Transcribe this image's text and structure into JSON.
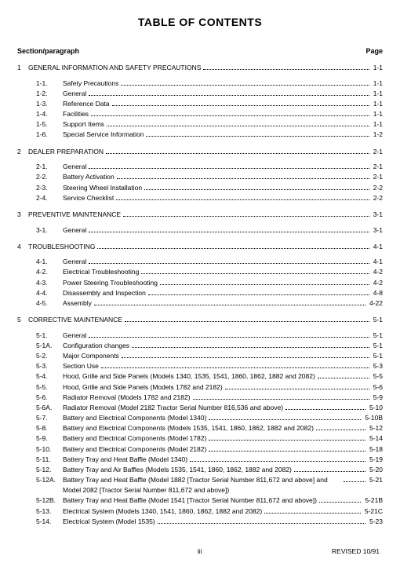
{
  "title": "TABLE OF CONTENTS",
  "header": {
    "left": "Section/paragraph",
    "right": "Page"
  },
  "sections": [
    {
      "num": "1",
      "title": "GENERAL INFORMATION AND SAFETY PRECAUTIONS",
      "page": "1-1",
      "subs": [
        {
          "num": "1-1.",
          "title": "Safety Precautions",
          "page": "1-1"
        },
        {
          "num": "1-2.",
          "title": "General",
          "page": "1-1"
        },
        {
          "num": "1-3.",
          "title": "Reference Data",
          "page": "1-1"
        },
        {
          "num": "1-4.",
          "title": "Facilities",
          "page": "1-1"
        },
        {
          "num": "1-5.",
          "title": "Support Items",
          "page": "1-1"
        },
        {
          "num": "1-6.",
          "title": "Special Service Information",
          "page": "1-2"
        }
      ]
    },
    {
      "num": "2",
      "title": "DEALER PREPARATION",
      "page": "2-1",
      "subs": [
        {
          "num": "2-1.",
          "title": "General",
          "page": "2-1"
        },
        {
          "num": "2-2.",
          "title": "Battery Activation",
          "page": "2-1"
        },
        {
          "num": "2-3.",
          "title": "Steering Wheel Installation",
          "page": "2-2"
        },
        {
          "num": "2-4.",
          "title": "Service Checklist",
          "page": "2-2"
        }
      ]
    },
    {
      "num": "3",
      "title": "PREVENTIVE MAINTENANCE",
      "page": "3-1",
      "subs": [
        {
          "num": "3-1.",
          "title": "General",
          "page": "3-1"
        }
      ]
    },
    {
      "num": "4",
      "title": "TROUBLESHOOTING",
      "page": "4-1",
      "subs": [
        {
          "num": "4-1.",
          "title": "General",
          "page": "4-1"
        },
        {
          "num": "4-2.",
          "title": "Electrical Troubleshooting",
          "page": "4-2"
        },
        {
          "num": "4-3.",
          "title": "Power Steering Troubleshooting",
          "page": "4-2"
        },
        {
          "num": "4-4.",
          "title": "Disassembly and Inspection",
          "page": "4-8"
        },
        {
          "num": "4-5.",
          "title": "Assembly",
          "page": "4-22"
        }
      ]
    },
    {
      "num": "5",
      "title": "CORRECTIVE MAINTENANCE",
      "page": "5-1",
      "subs": [
        {
          "num": "5-1.",
          "title": "General",
          "page": "5-1"
        },
        {
          "num": "5-1A.",
          "title": "Configuration changes",
          "page": "5-1"
        },
        {
          "num": "5-2.",
          "title": "Major Components",
          "page": "5-1"
        },
        {
          "num": "5-3.",
          "title": "Section Use",
          "page": "5-3"
        },
        {
          "num": "5-4.",
          "title": "Hood, Grille and Side Panels (Models 1340, 1535, 1541, 1860, 1862, 1882 and 2082)",
          "page": "5-5"
        },
        {
          "num": "5-5.",
          "title": "Hood, Grille and Side Panels (Models 1782 and 2182)",
          "page": "5-6"
        },
        {
          "num": "5-6.",
          "title": "Radiator Removal (Models 1782 and 2182)",
          "page": "5-9"
        },
        {
          "num": "5-6A.",
          "title": "Radiator Removal (Model 2182 Tractor Serial Number 816,536 and above)",
          "page": "5-10"
        },
        {
          "num": "5-7.",
          "title": "Battery and Electrical Components (Model 1340)",
          "page": "5-10B"
        },
        {
          "num": "5-8.",
          "title": "Battery and Electrical Components (Models 1535, 1541, 1860, 1862, 1882 and 2082)",
          "page": "5-12"
        },
        {
          "num": "5-9.",
          "title": "Battery and Electrical Components (Model 1782)",
          "page": "5-14"
        },
        {
          "num": "5-10.",
          "title": "Battery and Electrical Components (Model 2182)",
          "page": "5-18"
        },
        {
          "num": "5-11.",
          "title": "Battery Tray and Heat Baffle (Model 1340)",
          "page": "5-19"
        },
        {
          "num": "5-12.",
          "title": "Battery Tray and Air Baffles (Models 1535, 1541, 1860, 1862, 1882 and 2082)",
          "page": "5-20"
        },
        {
          "num": "5-12A.",
          "title": "Battery Tray and Heat Baffle (Model 1882 [Tractor Serial Number 811,672 and above] and Model 2082 [Tractor Serial Number 811,672 and above])",
          "page": "5-21"
        },
        {
          "num": "5-12B.",
          "title": "Battery Tray and Heat Baffle (Model 1541 [Tractor Serial Number 811,672 and above])",
          "page": "5-21B"
        },
        {
          "num": "5-13.",
          "title": "Electrical System (Models 1340, 1541, 1860, 1862, 1882 and 2082)",
          "page": "5-21C"
        },
        {
          "num": "5-14.",
          "title": "Electrical System (Model 1535)",
          "page": "5-23"
        }
      ]
    }
  ],
  "footer": {
    "center": "iii",
    "right": "REVISED 10/91"
  }
}
